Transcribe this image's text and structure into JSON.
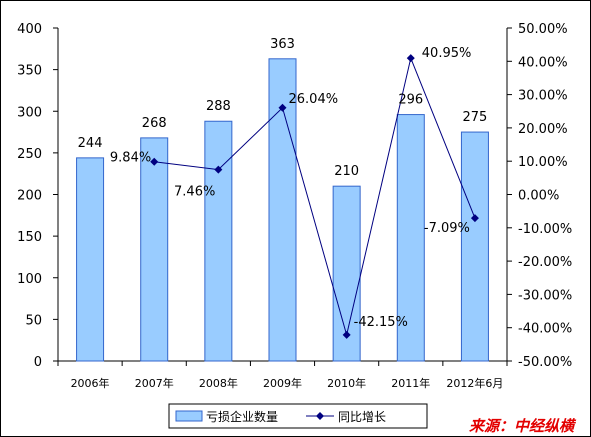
{
  "colors": {
    "bar_fill": "#99CCFF",
    "bar_stroke": "#3366CC",
    "line": "#000080",
    "source": "#E30000"
  },
  "source_text": "来源：中经纵横",
  "chart_data": {
    "type": "bar",
    "categories": [
      "2006年",
      "2007年",
      "2008年",
      "2009年",
      "2010年",
      "2011年",
      "2012年6月"
    ],
    "series": [
      {
        "name": "亏损企业数量",
        "type": "bar",
        "axis": "left",
        "values": [
          244,
          268,
          288,
          363,
          210,
          296,
          275
        ],
        "labels": [
          "244",
          "268",
          "288",
          "363",
          "210",
          "296",
          "275"
        ]
      },
      {
        "name": "同比增长",
        "type": "line",
        "axis": "right",
        "values": [
          null,
          9.84,
          7.46,
          26.04,
          -42.15,
          40.95,
          -7.09
        ],
        "labels": [
          "",
          "9.84%",
          "7.46%",
          "26.04%",
          "-42.15%",
          "40.95%",
          "-7.09%"
        ]
      }
    ],
    "ylim": [
      0,
      400
    ],
    "y_ticks": [
      "0",
      "50",
      "100",
      "150",
      "200",
      "250",
      "300",
      "350",
      "400"
    ],
    "y2lim": [
      -50,
      50
    ],
    "y2_ticks": [
      "-50.00%",
      "-40.00%",
      "-30.00%",
      "-20.00%",
      "-10.00%",
      "0.00%",
      "10.00%",
      "20.00%",
      "30.00%",
      "40.00%",
      "50.00%"
    ],
    "grid": false,
    "legend": "bottom"
  }
}
